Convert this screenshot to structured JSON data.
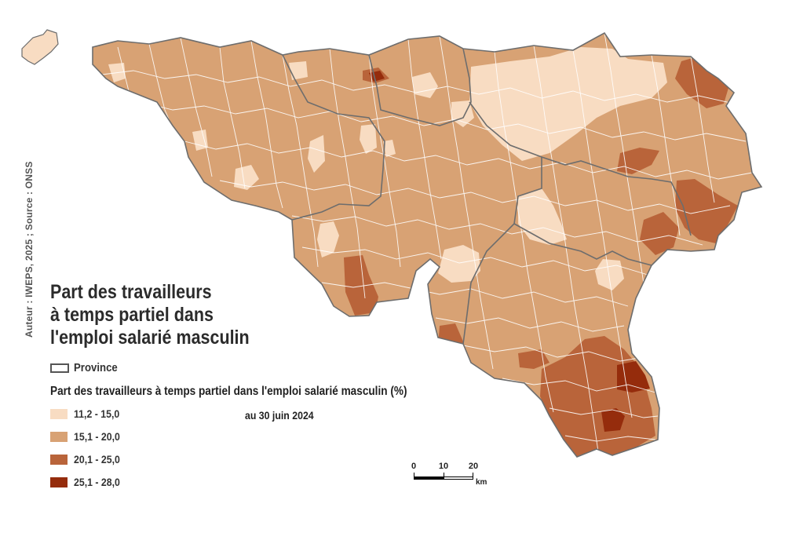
{
  "credit": "Auteur : IWEPS, 2025 ; Source : ONSS",
  "title_lines": [
    "Part des travailleurs",
    "à temps partiel dans",
    "l'emploi salarié masculin"
  ],
  "province_legend": {
    "label": "Province",
    "border_color": "#555555"
  },
  "legend_title": "Part des travailleurs à temps partiel dans l'emploi salarié masculin (%)",
  "date": "au 30 juin 2024",
  "classes": [
    {
      "label": "11,2 - 15,0",
      "color": "#f8dcc2"
    },
    {
      "label": "15,1 - 20,0",
      "color": "#d8a274"
    },
    {
      "label": "20,1 - 25,0",
      "color": "#b9643a"
    },
    {
      "label": "25,1 - 28,0",
      "color": "#952c0c"
    }
  ],
  "scale_bar": {
    "labels": [
      "0",
      "10",
      "20"
    ],
    "unit": "km"
  }
}
